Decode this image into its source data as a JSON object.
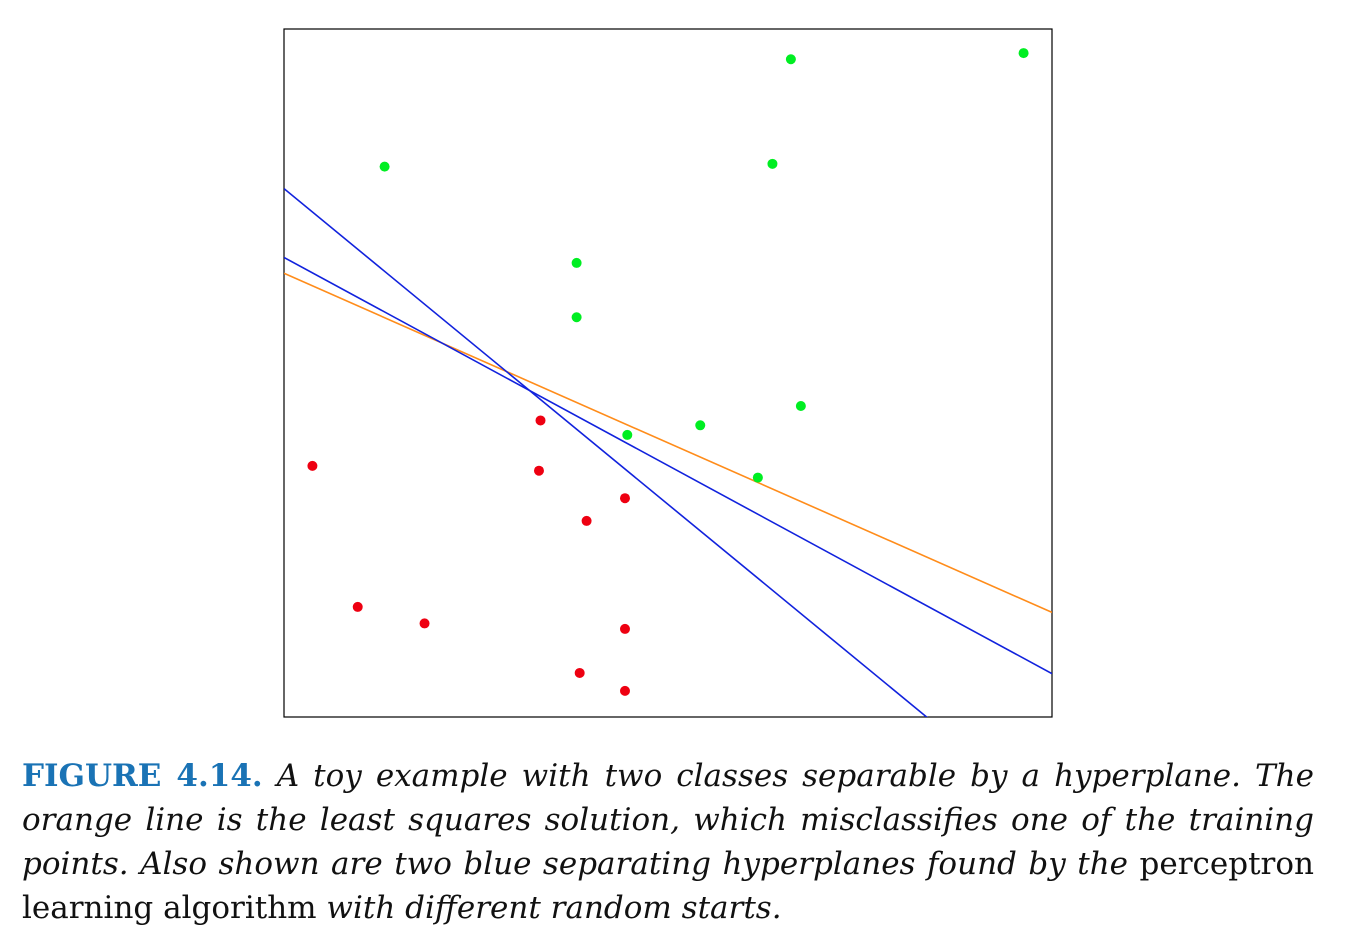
{
  "chart_data": {
    "type": "scatter",
    "title": "",
    "xlabel": "",
    "ylabel": "",
    "xlim": [
      0,
      1
    ],
    "ylim": [
      0,
      1
    ],
    "grid": false,
    "axes_ticks": false,
    "series": [
      {
        "color": "#00ee22",
        "points": [
          [
            0.66,
            0.956
          ],
          [
            0.963,
            0.965
          ],
          [
            0.131,
            0.8
          ],
          [
            0.636,
            0.804
          ],
          [
            0.381,
            0.66
          ],
          [
            0.381,
            0.581
          ],
          [
            0.673,
            0.452
          ],
          [
            0.447,
            0.41
          ],
          [
            0.542,
            0.424
          ],
          [
            0.617,
            0.348
          ]
        ]
      },
      {
        "color": "#ee0011",
        "points": [
          [
            0.037,
            0.365
          ],
          [
            0.334,
            0.431
          ],
          [
            0.332,
            0.358
          ],
          [
            0.444,
            0.318
          ],
          [
            0.394,
            0.285
          ],
          [
            0.096,
            0.16
          ],
          [
            0.183,
            0.136
          ],
          [
            0.444,
            0.128
          ],
          [
            0.385,
            0.064
          ],
          [
            0.444,
            0.038
          ]
        ]
      }
    ],
    "lines": [
      {
        "color": "#ff8c1a",
        "from": [
          0.0,
          0.645
        ],
        "to": [
          1.0,
          0.152
        ]
      },
      {
        "color": "#1122dd",
        "from": [
          0.0,
          0.668
        ],
        "to": [
          1.0,
          0.063
        ]
      },
      {
        "color": "#1122dd",
        "from": [
          0.0,
          0.768
        ],
        "to": [
          0.84,
          -0.003
        ]
      }
    ]
  },
  "caption": {
    "label": "FIGURE 4.14.",
    "part1": " A toy example with two classes separable by a hyperplane. The orange line is the least squares solution, which misclassifies one of the training points. Also shown are two blue separating hyperplanes found by the ",
    "part2": "perceptron learning algorithm",
    "part3": " with different random starts."
  }
}
